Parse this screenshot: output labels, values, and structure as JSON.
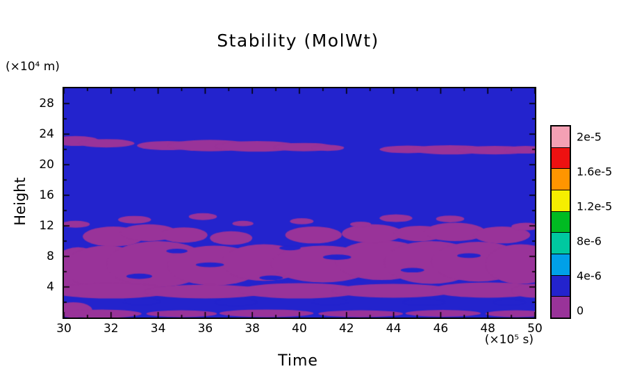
{
  "figure": {
    "title": "Stability (MolWt)",
    "xlabel": "Time",
    "x_unit": "(×10⁵ s)",
    "ylabel": "Height",
    "y_unit": "(×10⁴ m)"
  },
  "chart_data": {
    "type": "heatmap",
    "subtype": "filled-contour",
    "title": "Stability (MolWt)",
    "xlabel": "Time (×10⁵ s)",
    "ylabel": "Height (×10⁴ m)",
    "xlim": [
      30,
      50
    ],
    "ylim": [
      0,
      30
    ],
    "x_ticks": [
      30,
      32,
      34,
      36,
      38,
      40,
      42,
      44,
      46,
      48,
      50
    ],
    "y_ticks": [
      4,
      8,
      12,
      16,
      20,
      24,
      28
    ],
    "x_minor_step": 1,
    "y_minor_step": 2,
    "grid": false,
    "legend_position": "right-colorbar",
    "colorbar": {
      "labels_bottom_to_top": [
        "0",
        "4e-6",
        "8e-6",
        "1.2e-5",
        "1.6e-5",
        "2e-5"
      ],
      "cell_colors_bottom_to_top": [
        "#993399",
        "#2323cd",
        "#00a0e8",
        "#00c8a0",
        "#00bb22",
        "#f5ee00",
        "#ff9500",
        "#ee1111",
        "#f4a0b4"
      ]
    },
    "field": {
      "note": "Field is almost entirely in the two lowest bins: blue background (~0–4e-6) with purple (lowest, ~0) regions. Purple regions approximated as ellipses [x, y, rx, ry] in data coordinates; blue holes punched back inside.",
      "background_value_color": "#2323cd",
      "low_region_color": "#993399",
      "purple_regions": [
        [
          30.5,
          23.1,
          1.0,
          0.65
        ],
        [
          31.8,
          22.8,
          1.2,
          0.55
        ],
        [
          34.4,
          22.5,
          1.3,
          0.6
        ],
        [
          36.2,
          22.5,
          1.8,
          0.75
        ],
        [
          38.2,
          22.4,
          1.8,
          0.7
        ],
        [
          40.2,
          22.3,
          1.3,
          0.55
        ],
        [
          41.2,
          22.2,
          0.7,
          0.4
        ],
        [
          44.6,
          22.0,
          1.2,
          0.5
        ],
        [
          46.4,
          21.95,
          1.7,
          0.6
        ],
        [
          48.3,
          21.9,
          1.6,
          0.55
        ],
        [
          49.6,
          21.95,
          0.9,
          0.5
        ],
        [
          30.6,
          6.0,
          1.2,
          3.2
        ],
        [
          31.8,
          6.6,
          1.8,
          2.8
        ],
        [
          34.0,
          7.0,
          2.2,
          3.0
        ],
        [
          36.4,
          6.8,
          2.0,
          2.6
        ],
        [
          38.5,
          7.2,
          1.8,
          2.4
        ],
        [
          41.0,
          7.0,
          2.2,
          2.4
        ],
        [
          43.5,
          7.5,
          2.0,
          2.6
        ],
        [
          45.6,
          7.2,
          2.0,
          2.8
        ],
        [
          47.6,
          7.3,
          2.0,
          2.6
        ],
        [
          49.4,
          7.0,
          1.5,
          2.6
        ],
        [
          32.1,
          10.6,
          1.3,
          1.3
        ],
        [
          33.6,
          11.1,
          1.2,
          1.1
        ],
        [
          35.1,
          10.8,
          1.0,
          1.0
        ],
        [
          37.1,
          10.4,
          0.9,
          0.9
        ],
        [
          40.6,
          10.8,
          1.2,
          1.1
        ],
        [
          43.1,
          11.0,
          1.3,
          1.2
        ],
        [
          45.1,
          11.0,
          1.1,
          1.0
        ],
        [
          46.6,
          11.2,
          1.3,
          1.2
        ],
        [
          48.6,
          10.8,
          1.2,
          1.1
        ],
        [
          30.5,
          12.2,
          0.6,
          0.45
        ],
        [
          33.0,
          12.8,
          0.7,
          0.5
        ],
        [
          35.9,
          13.2,
          0.6,
          0.45
        ],
        [
          37.6,
          12.3,
          0.45,
          0.35
        ],
        [
          40.1,
          12.6,
          0.5,
          0.4
        ],
        [
          42.6,
          12.2,
          0.45,
          0.35
        ],
        [
          44.1,
          13.0,
          0.7,
          0.5
        ],
        [
          46.4,
          12.9,
          0.6,
          0.45
        ],
        [
          49.6,
          11.9,
          0.6,
          0.5
        ],
        [
          32.0,
          3.5,
          2.6,
          1.0
        ],
        [
          36.0,
          3.4,
          2.6,
          0.9
        ],
        [
          40.0,
          3.5,
          2.6,
          1.0
        ],
        [
          44.0,
          3.5,
          2.6,
          0.9
        ],
        [
          48.0,
          3.6,
          2.4,
          1.0
        ],
        [
          50.0,
          3.5,
          1.0,
          0.9
        ],
        [
          30.4,
          1.0,
          0.8,
          1.0
        ],
        [
          31.6,
          0.5,
          1.7,
          0.55
        ],
        [
          35.0,
          0.5,
          1.5,
          0.45
        ],
        [
          38.6,
          0.55,
          2.0,
          0.5
        ],
        [
          42.6,
          0.5,
          1.8,
          0.45
        ],
        [
          46.1,
          0.55,
          1.6,
          0.45
        ],
        [
          49.2,
          0.5,
          1.3,
          0.45
        ]
      ],
      "blue_holes": [
        [
          33.2,
          5.4,
          0.55,
          0.35
        ],
        [
          36.2,
          6.9,
          0.6,
          0.3
        ],
        [
          38.8,
          5.2,
          0.5,
          0.3
        ],
        [
          41.6,
          7.9,
          0.6,
          0.35
        ],
        [
          44.8,
          6.2,
          0.5,
          0.3
        ],
        [
          47.2,
          8.1,
          0.5,
          0.3
        ],
        [
          39.6,
          9.1,
          0.45,
          0.3
        ],
        [
          34.8,
          8.7,
          0.45,
          0.3
        ],
        [
          37.3,
          2.0,
          0.9,
          0.5
        ],
        [
          41.3,
          2.1,
          0.8,
          0.45
        ],
        [
          45.3,
          2.0,
          0.9,
          0.45
        ],
        [
          33.3,
          2.1,
          0.8,
          0.45
        ],
        [
          48.9,
          2.0,
          0.7,
          0.4
        ]
      ]
    }
  }
}
